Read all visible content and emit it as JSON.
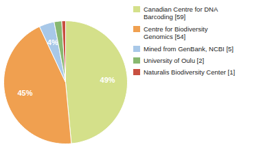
{
  "chart_data": {
    "type": "pie",
    "categories": [
      "Canadian Centre for DNA\nBarcoding [59]",
      "Centre for Biodiversity\nGenomics [54]",
      "Mined from GenBank, NCBI [5]",
      "University of Oulu [2]",
      "Naturalis Biodiversity Center [1]"
    ],
    "values": [
      49,
      45,
      4,
      2,
      1
    ],
    "value_labels": [
      "49%",
      "45%",
      "4%",
      null,
      null
    ],
    "data_labels": true,
    "colors": [
      "#d4e08a",
      "#f0a050",
      "#a8c8e8",
      "#88b870",
      "#c85040"
    ],
    "legend": "right"
  }
}
